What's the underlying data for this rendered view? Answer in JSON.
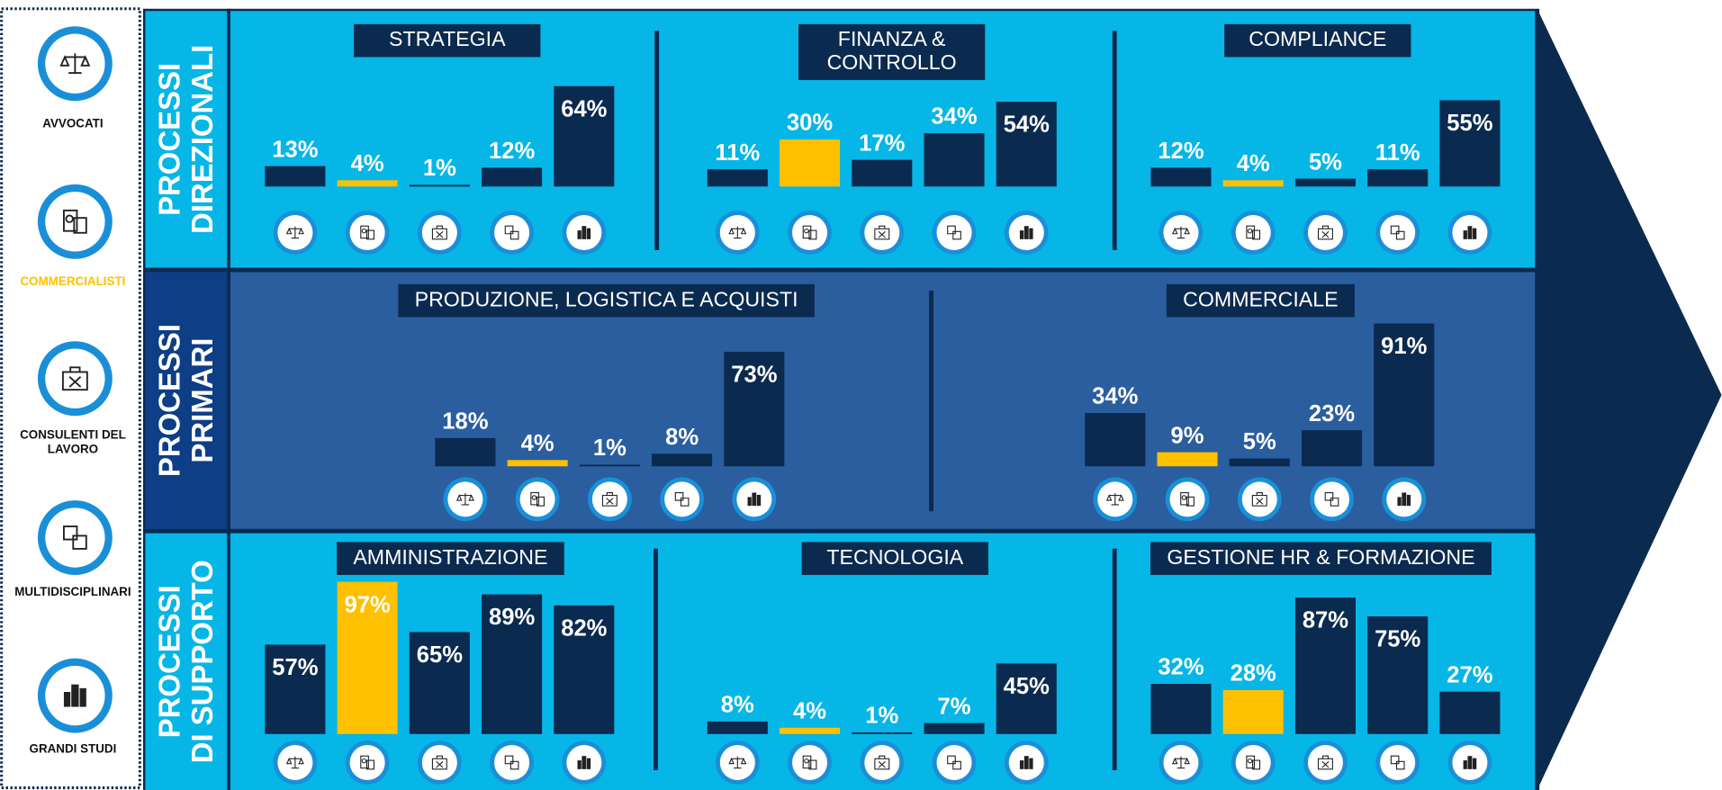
{
  "legend": [
    {
      "lines": [
        "AVVOCATI"
      ],
      "color": "#0b2a4f"
    },
    {
      "lines": [
        "COMMERCIALISTI"
      ],
      "color": "#ffc000"
    },
    {
      "lines": [
        "CONSULENTI DEL",
        "LAVORO"
      ],
      "color": "#0b2a4f"
    },
    {
      "lines": [
        "MULTIDISCIPLINARI"
      ],
      "color": "#0b2a4f"
    },
    {
      "lines": [
        "GRANDI STUDI"
      ],
      "color": "#0b2a4f"
    }
  ],
  "rows": [
    {
      "label": [
        "PROCESSI",
        "DIREZIONALI"
      ],
      "panels": [
        {
          "title": [
            "STRATEGIA"
          ],
          "values": [
            13,
            4,
            1,
            12,
            64
          ],
          "value_labels": [
            "13%",
            "4%",
            "1%",
            "12%",
            "64%"
          ]
        },
        {
          "title": [
            "FINANZA &",
            "CONTROLLO"
          ],
          "values": [
            11,
            30,
            17,
            34,
            54
          ],
          "value_labels": [
            "11%",
            "30%",
            "17%",
            "34%",
            "54%"
          ]
        },
        {
          "title": [
            "COMPLIANCE"
          ],
          "values": [
            12,
            4,
            5,
            11,
            55
          ],
          "value_labels": [
            "12%",
            "4%",
            "5%",
            "11%",
            "55%"
          ]
        }
      ]
    },
    {
      "label": [
        "PROCESSI",
        "PRIMARI"
      ],
      "panels": [
        {
          "title": [
            "PRODUZIONE, LOGISTICA E ACQUISTI"
          ],
          "values": [
            18,
            4,
            1,
            8,
            73
          ],
          "value_labels": [
            "18%",
            "4%",
            "1%",
            "8%",
            "73%"
          ]
        },
        {
          "title": [
            "COMMERCIALE"
          ],
          "values": [
            34,
            9,
            5,
            23,
            91
          ],
          "value_labels": [
            "34%",
            "9%",
            "5%",
            "23%",
            "91%"
          ]
        }
      ]
    },
    {
      "label": [
        "PROCESSI",
        "DI SUPPORTO"
      ],
      "panels": [
        {
          "title": [
            "AMMINISTRAZIONE"
          ],
          "values": [
            57,
            97,
            65,
            89,
            82
          ],
          "value_labels": [
            "57%",
            "97%",
            "65%",
            "89%",
            "82%"
          ]
        },
        {
          "title": [
            "TECNOLOGIA"
          ],
          "values": [
            8,
            4,
            1,
            7,
            45
          ],
          "value_labels": [
            "8%",
            "4%",
            "1%",
            "7%",
            "45%"
          ]
        },
        {
          "title": [
            "GESTIONE HR & FORMAZIONE"
          ],
          "values": [
            32,
            28,
            87,
            75,
            27
          ],
          "value_labels": [
            "32%",
            "28%",
            "87%",
            "75%",
            "27%"
          ]
        }
      ]
    }
  ]
}
